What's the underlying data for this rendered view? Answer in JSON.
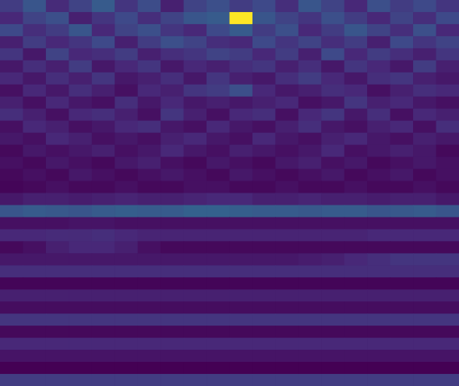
{
  "chart_data": {
    "type": "heatmap",
    "color": "viridis",
    "tick_labels": false,
    "z": [
      [
        20,
        28,
        15,
        22,
        30,
        18,
        25,
        12,
        22,
        26,
        20,
        24,
        16,
        28,
        22,
        14,
        26,
        20,
        24,
        18
      ],
      [
        14,
        22,
        26,
        12,
        18,
        24,
        16,
        22,
        28,
        30,
        95,
        28,
        22,
        18,
        26,
        20,
        14,
        22,
        16,
        24
      ],
      [
        24,
        16,
        20,
        28,
        14,
        22,
        26,
        18,
        14,
        24,
        30,
        20,
        26,
        14,
        20,
        28,
        22,
        16,
        26,
        14
      ],
      [
        12,
        20,
        14,
        18,
        24,
        12,
        20,
        26,
        22,
        16,
        14,
        24,
        18,
        22,
        16,
        20,
        12,
        24,
        18,
        22
      ],
      [
        18,
        10,
        22,
        14,
        16,
        20,
        12,
        16,
        18,
        22,
        20,
        14,
        20,
        12,
        24,
        14,
        20,
        16,
        12,
        18
      ],
      [
        10,
        16,
        12,
        20,
        10,
        14,
        18,
        10,
        14,
        12,
        16,
        18,
        12,
        16,
        10,
        18,
        14,
        10,
        20,
        12
      ],
      [
        14,
        10,
        16,
        12,
        18,
        10,
        12,
        16,
        10,
        18,
        12,
        10,
        16,
        20,
        14,
        10,
        16,
        18,
        12,
        10
      ],
      [
        8,
        14,
        10,
        16,
        12,
        8,
        14,
        12,
        18,
        20,
        26,
        14,
        10,
        12,
        16,
        14,
        8,
        12,
        16,
        14
      ],
      [
        12,
        8,
        14,
        10,
        8,
        16,
        10,
        14,
        10,
        12,
        10,
        12,
        14,
        8,
        10,
        18,
        12,
        14,
        10,
        8
      ],
      [
        16,
        12,
        8,
        14,
        16,
        12,
        8,
        18,
        12,
        8,
        14,
        16,
        8,
        14,
        18,
        10,
        16,
        8,
        14,
        12
      ],
      [
        8,
        14,
        12,
        8,
        10,
        14,
        16,
        10,
        8,
        14,
        10,
        8,
        12,
        16,
        10,
        8,
        12,
        14,
        8,
        16
      ],
      [
        10,
        8,
        14,
        12,
        8,
        10,
        8,
        12,
        14,
        10,
        8,
        14,
        10,
        8,
        12,
        14,
        10,
        8,
        12,
        10
      ],
      [
        6,
        10,
        8,
        10,
        12,
        8,
        10,
        14,
        10,
        8,
        12,
        10,
        8,
        10,
        14,
        8,
        10,
        12,
        10,
        6
      ],
      [
        8,
        6,
        10,
        8,
        6,
        10,
        12,
        8,
        6,
        10,
        8,
        6,
        10,
        12,
        8,
        10,
        6,
        8,
        10,
        8
      ],
      [
        6,
        8,
        6,
        10,
        8,
        6,
        8,
        10,
        8,
        6,
        10,
        8,
        6,
        8,
        10,
        6,
        8,
        10,
        6,
        8
      ],
      [
        5,
        6,
        8,
        6,
        6,
        8,
        6,
        6,
        8,
        8,
        6,
        6,
        8,
        6,
        6,
        8,
        6,
        6,
        8,
        6
      ],
      [
        10,
        12,
        12,
        11,
        12,
        13,
        12,
        12,
        13,
        14,
        14,
        12,
        12,
        13,
        12,
        12,
        11,
        12,
        12,
        10
      ],
      [
        28,
        30,
        29,
        28,
        30,
        31,
        30,
        30,
        32,
        32,
        31,
        30,
        30,
        29,
        30,
        30,
        28,
        29,
        30,
        28
      ],
      [
        8,
        8,
        8,
        9,
        9,
        8,
        8,
        8,
        8,
        8,
        8,
        8,
        8,
        8,
        8,
        8,
        8,
        8,
        8,
        8
      ],
      [
        14,
        14,
        15,
        15,
        16,
        14,
        13,
        13,
        13,
        13,
        13,
        13,
        13,
        13,
        13,
        13,
        14,
        14,
        14,
        14
      ],
      [
        6,
        8,
        12,
        14,
        14,
        12,
        8,
        6,
        6,
        6,
        6,
        6,
        6,
        6,
        6,
        6,
        6,
        6,
        6,
        6
      ],
      [
        10,
        10,
        10,
        10,
        10,
        10,
        10,
        10,
        10,
        10,
        10,
        10,
        10,
        11,
        12,
        14,
        16,
        18,
        18,
        18
      ],
      [
        16,
        16,
        16,
        16,
        16,
        16,
        16,
        16,
        16,
        16,
        16,
        16,
        16,
        16,
        16,
        16,
        16,
        16,
        16,
        16
      ],
      [
        5,
        5,
        5,
        5,
        5,
        5,
        5,
        5,
        5,
        5,
        5,
        5,
        5,
        5,
        5,
        5,
        5,
        5,
        5,
        5
      ],
      [
        12,
        12,
        12,
        12,
        12,
        12,
        12,
        12,
        12,
        12,
        12,
        12,
        12,
        12,
        12,
        12,
        12,
        12,
        12,
        12
      ],
      [
        7,
        7,
        7,
        7,
        7,
        7,
        7,
        7,
        7,
        7,
        7,
        7,
        7,
        7,
        7,
        7,
        7,
        7,
        7,
        7
      ],
      [
        18,
        18,
        18,
        18,
        18,
        18,
        18,
        18,
        18,
        18,
        18,
        18,
        18,
        18,
        18,
        18,
        18,
        18,
        18,
        18
      ],
      [
        6,
        6,
        6,
        6,
        6,
        6,
        6,
        6,
        6,
        6,
        6,
        6,
        6,
        6,
        6,
        6,
        6,
        6,
        6,
        6
      ],
      [
        14,
        14,
        14,
        14,
        14,
        14,
        14,
        14,
        14,
        14,
        14,
        14,
        14,
        14,
        14,
        14,
        14,
        14,
        14,
        14
      ],
      [
        9,
        9,
        9,
        9,
        9,
        9,
        9,
        9,
        9,
        9,
        9,
        9,
        9,
        9,
        9,
        9,
        9,
        9,
        9,
        9
      ],
      [
        4,
        4,
        4,
        4,
        4,
        4,
        4,
        4,
        4,
        4,
        4,
        4,
        4,
        4,
        4,
        4,
        4,
        4,
        4,
        4
      ],
      [
        20,
        20,
        20,
        20,
        20,
        20,
        20,
        20,
        20,
        20,
        20,
        20,
        20,
        20,
        20,
        20,
        20,
        20,
        20,
        20
      ]
    ]
  }
}
